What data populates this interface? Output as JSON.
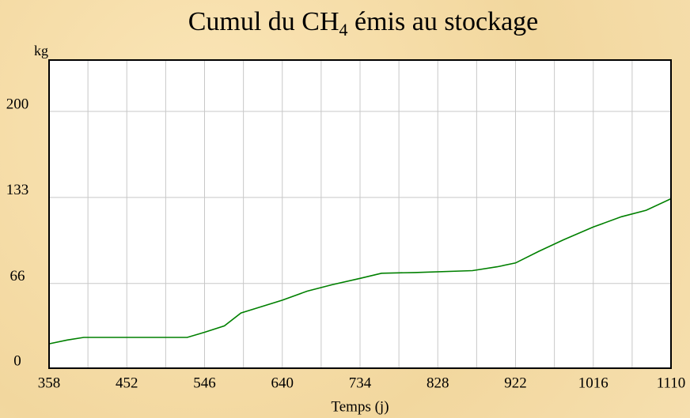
{
  "chart_data": {
    "type": "line",
    "title_parts": [
      "Cumul du CH",
      "4",
      " émis au stockage"
    ],
    "y_label": "kg",
    "x_label": "Temps (j)",
    "x": [
      358,
      380,
      400,
      450,
      525,
      546,
      570,
      590,
      610,
      640,
      670,
      700,
      734,
      760,
      800,
      870,
      900,
      922,
      950,
      980,
      1016,
      1050,
      1080,
      1110
    ],
    "series": [
      {
        "color": "#008000",
        "values": [
          19,
          22,
          24,
          24,
          24,
          28,
          33,
          43,
          47,
          53,
          60,
          65,
          70,
          74,
          74.5,
          76,
          79,
          82,
          91,
          100,
          110,
          118,
          123,
          132
        ]
      }
    ],
    "xlim": [
      358,
      1110
    ],
    "xticks": [
      358,
      452,
      546,
      640,
      734,
      828,
      922,
      1016,
      1110
    ],
    "xgrid": [
      405,
      499,
      593,
      687,
      781,
      875,
      969,
      1063
    ],
    "ylim": [
      0,
      240
    ],
    "yticks": [
      0,
      66,
      133,
      200
    ],
    "grid": true
  }
}
